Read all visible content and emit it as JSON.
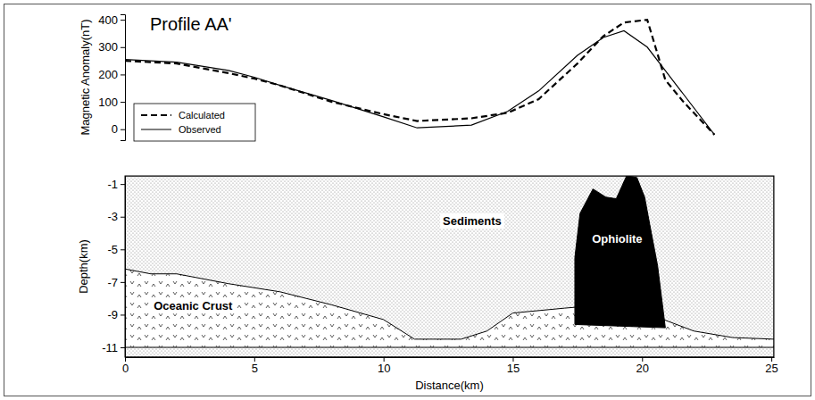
{
  "chart_data": [
    {
      "type": "line",
      "title": "Profile AA'",
      "y_label": "Magnetic Anomaly(nT)",
      "x": [
        0,
        2,
        4,
        5,
        6,
        8,
        10,
        11.3,
        13.4,
        14.8,
        16,
        17.5,
        18.5,
        19.3,
        20.2,
        20.9,
        21.6,
        22.8
      ],
      "series": [
        {
          "name": "Calculated",
          "color": "#000000",
          "line_style": "dashed",
          "values": [
            250,
            240,
            205,
            185,
            160,
            100,
            55,
            30,
            40,
            60,
            110,
            240,
            340,
            390,
            400,
            180,
            100,
            -20
          ]
        },
        {
          "name": "Observed",
          "color": "#000000",
          "line_style": "solid",
          "values": [
            255,
            245,
            215,
            190,
            160,
            105,
            45,
            5,
            15,
            65,
            140,
            270,
            335,
            360,
            300,
            214,
            128,
            -20
          ]
        }
      ],
      "xlim": [
        0,
        25.1
      ],
      "ylim": [
        -40,
        420
      ],
      "yticks": [
        0,
        100,
        200,
        300,
        400
      ],
      "legend": "lower left",
      "tick_labels": "y"
    },
    {
      "type": "cross_section",
      "x_label": "Distance(km)",
      "y_label": "Depth(km)",
      "xlim": [
        0,
        25.1
      ],
      "ylim": [
        -11.6,
        -0.5
      ],
      "xticks": [
        0,
        5,
        10,
        15,
        20,
        25
      ],
      "yticks": [
        -1,
        -3,
        -5,
        -7,
        -9,
        -11
      ],
      "bodies": [
        {
          "name": "Sediments",
          "color": "#ffffff",
          "x": [
            0,
            25.1,
            25.1,
            0
          ],
          "y": [
            -0.5,
            -0.5,
            -11.6,
            -11.6
          ]
        },
        {
          "name": "Oceanic Crust",
          "color": "#ffffff",
          "x": [
            0,
            1,
            2,
            4,
            6,
            8,
            10,
            11.2,
            13,
            14,
            15,
            17,
            18.5,
            20,
            22,
            23.5,
            25.1,
            25.1,
            0
          ],
          "y": [
            -6.2,
            -6.5,
            -6.5,
            -7.1,
            -7.6,
            -8.4,
            -9.3,
            -10.5,
            -10.5,
            -10,
            -8.9,
            -8.6,
            -8.4,
            -8.8,
            -10,
            -10.4,
            -10.5,
            -11,
            -11
          ]
        },
        {
          "name": "Ophiolite",
          "color": "#000000",
          "x": [
            17.4,
            17.4,
            17.6,
            18.1,
            18.6,
            19.0,
            19.4,
            19.8,
            20.1,
            20.3,
            20.6,
            20.9
          ],
          "y": [
            -9.6,
            -5.5,
            -2.8,
            -1.3,
            -1.8,
            -1.9,
            -0.5,
            -0.6,
            -1.8,
            -3.5,
            -6.0,
            -9.8
          ]
        }
      ]
    }
  ]
}
